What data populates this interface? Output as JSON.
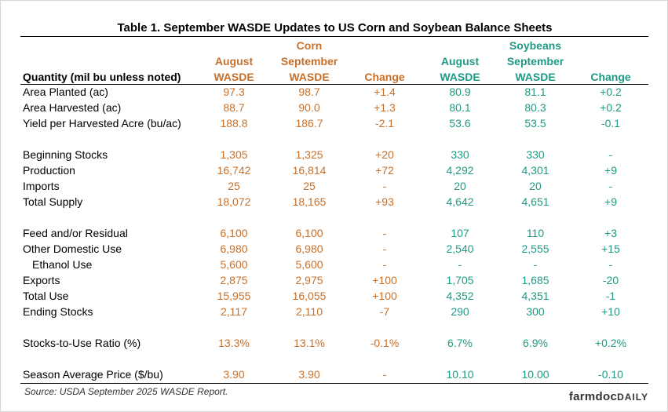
{
  "title": "Table 1. September WASDE Updates to US Corn and Soybean Balance Sheets",
  "colors": {
    "corn": "#c8702a",
    "soybeans": "#1f9a84"
  },
  "header": {
    "quantity_label": "Quantity (mil bu unless noted)",
    "corn_group": "Corn",
    "soy_group": "Soybeans",
    "august_line1": "August",
    "september_line1": "September",
    "wasde_line2": "WASDE",
    "change": "Change"
  },
  "rows": [
    {
      "label": "Area Planted (ac)",
      "corn": [
        "97.3",
        "98.7",
        "+1.4"
      ],
      "soy": [
        "80.9",
        "81.1",
        "+0.2"
      ]
    },
    {
      "label": "Area Harvested (ac)",
      "corn": [
        "88.7",
        "90.0",
        "+1.3"
      ],
      "soy": [
        "80.1",
        "80.3",
        "+0.2"
      ]
    },
    {
      "label": "Yield per Harvested Acre (bu/ac)",
      "corn": [
        "188.8",
        "186.7",
        "-2.1"
      ],
      "soy": [
        "53.6",
        "53.5",
        "-0.1"
      ]
    },
    {
      "label": "Beginning Stocks",
      "corn": [
        "1,305",
        "1,325",
        "+20"
      ],
      "soy": [
        "330",
        "330",
        "-"
      ]
    },
    {
      "label": "Production",
      "corn": [
        "16,742",
        "16,814",
        "+72"
      ],
      "soy": [
        "4,292",
        "4,301",
        "+9"
      ]
    },
    {
      "label": "Imports",
      "corn": [
        "25",
        "25",
        "-"
      ],
      "soy": [
        "20",
        "20",
        "-"
      ]
    },
    {
      "label": "Total Supply",
      "corn": [
        "18,072",
        "18,165",
        "+93"
      ],
      "soy": [
        "4,642",
        "4,651",
        "+9"
      ]
    },
    {
      "label": "Feed and/or Residual",
      "corn": [
        "6,100",
        "6,100",
        "-"
      ],
      "soy": [
        "107",
        "110",
        "+3"
      ]
    },
    {
      "label": "Other Domestic Use",
      "corn": [
        "6,980",
        "6,980",
        "-"
      ],
      "soy": [
        "2,540",
        "2,555",
        "+15"
      ]
    },
    {
      "label": "Ethanol Use",
      "corn": [
        "5,600",
        "5,600",
        "-"
      ],
      "soy": [
        "-",
        "-",
        "-"
      ]
    },
    {
      "label": "Exports",
      "corn": [
        "2,875",
        "2,975",
        "+100"
      ],
      "soy": [
        "1,705",
        "1,685",
        "-20"
      ]
    },
    {
      "label": "Total Use",
      "corn": [
        "15,955",
        "16,055",
        "+100"
      ],
      "soy": [
        "4,352",
        "4,351",
        "-1"
      ]
    },
    {
      "label": "Ending Stocks",
      "corn": [
        "2,117",
        "2,110",
        "-7"
      ],
      "soy": [
        "290",
        "300",
        "+10"
      ]
    },
    {
      "label": "Stocks-to-Use Ratio (%)",
      "corn": [
        "13.3%",
        "13.1%",
        "-0.1%"
      ],
      "soy": [
        "6.7%",
        "6.9%",
        "+0.2%"
      ]
    },
    {
      "label": "Season Average Price ($/bu)",
      "corn": [
        "3.90",
        "3.90",
        "-"
      ],
      "soy": [
        "10.10",
        "10.00",
        "-0.10"
      ]
    }
  ],
  "source": "Source: USDA September 2025 WASDE Report.",
  "brand": {
    "part1": "farmdoc",
    "part2": "DAILY"
  }
}
